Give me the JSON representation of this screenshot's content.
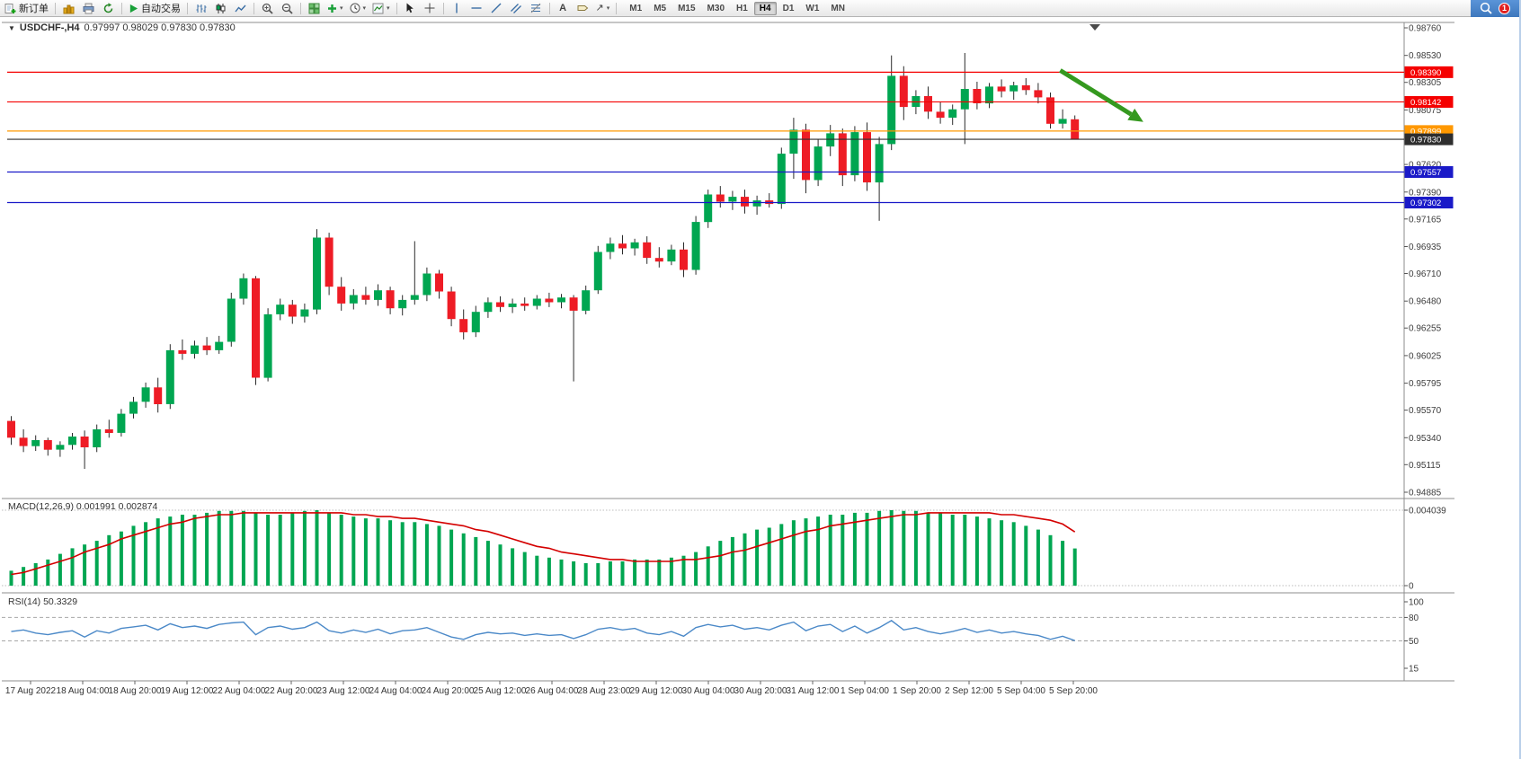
{
  "colors": {
    "up": "#00A651",
    "down": "#EE1C25",
    "wick": "#2b2b2b",
    "macd_bar": "#00A651",
    "macd_signal": "#D40000",
    "rsi_line": "#4B89C8",
    "arrow": "#35991F",
    "badge": "#E02020"
  },
  "toolbar": {
    "new_order_label": "新订单",
    "auto_trading_label": "自动交易",
    "timeframes": [
      "M1",
      "M5",
      "M15",
      "M30",
      "H1",
      "H4",
      "D1",
      "W1",
      "MN"
    ],
    "active_timeframe": "H4",
    "notification_count": "1"
  },
  "chart_data": [
    {
      "type": "candlestick",
      "symbol_period": "USDCHF-,H4",
      "ohlc_text": "0.97997 0.98029 0.97830 0.97830",
      "ohlc": {
        "open": "0.97997",
        "high": "0.98029",
        "low": "0.97830",
        "close": "0.97830"
      },
      "y_axis": {
        "min": 0.94885,
        "max": 0.9876,
        "ticks": [
          "0.98760",
          "0.98530",
          "0.98305",
          "0.98075",
          "0.97620",
          "0.97390",
          "0.97165",
          "0.96935",
          "0.96710",
          "0.96480",
          "0.96255",
          "0.96025",
          "0.95795",
          "0.95570",
          "0.95340",
          "0.95115",
          "0.94885"
        ]
      },
      "x_labels": [
        "17 Aug 2022",
        "18 Aug 04:00",
        "18 Aug 20:00",
        "19 Aug 12:00",
        "22 Aug 04:00",
        "22 Aug 20:00",
        "23 Aug 12:00",
        "24 Aug 04:00",
        "24 Aug 20:00",
        "25 Aug 12:00",
        "26 Aug 04:00",
        "28 Aug 23:00",
        "29 Aug 12:00",
        "30 Aug 04:00",
        "30 Aug 20:00",
        "31 Aug 12:00",
        "1 Sep 04:00",
        "1 Sep 20:00",
        "2 Sep 12:00",
        "5 Sep 04:00",
        "5 Sep 20:00"
      ],
      "hlines": [
        {
          "price": 0.9839,
          "label": "0.98390",
          "color": "#F50000",
          "role": "resistance"
        },
        {
          "price": 0.98142,
          "label": "0.98142",
          "color": "#F50000",
          "role": "resistance"
        },
        {
          "price": 0.97899,
          "label": "0.97899",
          "color": "#FF9800",
          "role": "level"
        },
        {
          "price": 0.9783,
          "label": "0.97830",
          "color": "#2E2E2E",
          "role": "current-price"
        },
        {
          "price": 0.97557,
          "label": "0.97557",
          "color": "#1A1AC8",
          "role": "support"
        },
        {
          "price": 0.97302,
          "label": "0.97302",
          "color": "#1A1AC8",
          "role": "support"
        }
      ],
      "arrow": {
        "from": {
          "index": 85.8,
          "price": 0.98405
        },
        "to": {
          "index": 92.6,
          "price": 0.97975
        }
      },
      "candles": [
        [
          0.9548,
          0.9552,
          0.9528,
          0.9534
        ],
        [
          0.9534,
          0.9541,
          0.9522,
          0.9527
        ],
        [
          0.9527,
          0.9536,
          0.9523,
          0.9532
        ],
        [
          0.9532,
          0.9534,
          0.9519,
          0.9524
        ],
        [
          0.9524,
          0.9531,
          0.9518,
          0.9528
        ],
        [
          0.9528,
          0.9538,
          0.9524,
          0.9535
        ],
        [
          0.9535,
          0.954,
          0.9508,
          0.9526
        ],
        [
          0.9526,
          0.9545,
          0.9522,
          0.9541
        ],
        [
          0.9541,
          0.9549,
          0.9534,
          0.9538
        ],
        [
          0.9538,
          0.9558,
          0.9535,
          0.9554
        ],
        [
          0.9554,
          0.9568,
          0.955,
          0.9564
        ],
        [
          0.9564,
          0.958,
          0.9559,
          0.9576
        ],
        [
          0.9576,
          0.9584,
          0.9555,
          0.9562
        ],
        [
          0.9562,
          0.9612,
          0.9558,
          0.9607
        ],
        [
          0.9607,
          0.9616,
          0.9599,
          0.9604
        ],
        [
          0.9604,
          0.9615,
          0.96,
          0.9611
        ],
        [
          0.9611,
          0.9618,
          0.9603,
          0.9607
        ],
        [
          0.9607,
          0.9619,
          0.9604,
          0.9614
        ],
        [
          0.9614,
          0.9655,
          0.961,
          0.965
        ],
        [
          0.965,
          0.9671,
          0.9645,
          0.9667
        ],
        [
          0.9667,
          0.9669,
          0.9578,
          0.9584
        ],
        [
          0.9584,
          0.9642,
          0.9581,
          0.9637
        ],
        [
          0.9637,
          0.965,
          0.9632,
          0.9645
        ],
        [
          0.9645,
          0.9649,
          0.9629,
          0.9635
        ],
        [
          0.9635,
          0.9646,
          0.963,
          0.9641
        ],
        [
          0.9641,
          0.9708,
          0.9637,
          0.9701
        ],
        [
          0.9701,
          0.9705,
          0.9653,
          0.966
        ],
        [
          0.966,
          0.9668,
          0.964,
          0.9646
        ],
        [
          0.9646,
          0.9658,
          0.9641,
          0.9653
        ],
        [
          0.9653,
          0.966,
          0.9645,
          0.9649
        ],
        [
          0.9649,
          0.9662,
          0.9644,
          0.9657
        ],
        [
          0.9657,
          0.966,
          0.9637,
          0.9642
        ],
        [
          0.9642,
          0.9653,
          0.9636,
          0.9649
        ],
        [
          0.9649,
          0.9698,
          0.9645,
          0.9653
        ],
        [
          0.9653,
          0.9676,
          0.9648,
          0.9671
        ],
        [
          0.9671,
          0.9674,
          0.965,
          0.9656
        ],
        [
          0.9656,
          0.966,
          0.9627,
          0.9633
        ],
        [
          0.9633,
          0.9641,
          0.9616,
          0.9622
        ],
        [
          0.9622,
          0.9644,
          0.9618,
          0.9639
        ],
        [
          0.9639,
          0.9651,
          0.9634,
          0.9647
        ],
        [
          0.9647,
          0.9652,
          0.9639,
          0.9643
        ],
        [
          0.9643,
          0.965,
          0.9638,
          0.9646
        ],
        [
          0.9646,
          0.9651,
          0.964,
          0.9644
        ],
        [
          0.9644,
          0.9653,
          0.9641,
          0.965
        ],
        [
          0.965,
          0.9655,
          0.9643,
          0.9647
        ],
        [
          0.9647,
          0.9654,
          0.9642,
          0.9651
        ],
        [
          0.9651,
          0.9653,
          0.9581,
          0.964
        ],
        [
          0.964,
          0.9661,
          0.9637,
          0.9657
        ],
        [
          0.9657,
          0.9694,
          0.9654,
          0.9689
        ],
        [
          0.9689,
          0.9701,
          0.9683,
          0.9696
        ],
        [
          0.9696,
          0.9703,
          0.9687,
          0.9692
        ],
        [
          0.9692,
          0.97,
          0.9686,
          0.9697
        ],
        [
          0.9697,
          0.9702,
          0.9679,
          0.9684
        ],
        [
          0.9684,
          0.9693,
          0.9676,
          0.9681
        ],
        [
          0.9681,
          0.9695,
          0.9678,
          0.9691
        ],
        [
          0.9691,
          0.9697,
          0.9668,
          0.9674
        ],
        [
          0.9674,
          0.9719,
          0.967,
          0.9714
        ],
        [
          0.9714,
          0.9741,
          0.9709,
          0.9737
        ],
        [
          0.9737,
          0.9744,
          0.9726,
          0.9731
        ],
        [
          0.9731,
          0.974,
          0.9724,
          0.9735
        ],
        [
          0.9735,
          0.9741,
          0.9721,
          0.9727
        ],
        [
          0.9727,
          0.9736,
          0.972,
          0.9732
        ],
        [
          0.9732,
          0.9738,
          0.9726,
          0.9729
        ],
        [
          0.9729,
          0.9776,
          0.9725,
          0.9771
        ],
        [
          0.9771,
          0.9801,
          0.975,
          0.9791
        ],
        [
          0.9791,
          0.9796,
          0.9738,
          0.9749
        ],
        [
          0.9749,
          0.9783,
          0.9744,
          0.9777
        ],
        [
          0.9777,
          0.9795,
          0.9769,
          0.9788
        ],
        [
          0.9788,
          0.9792,
          0.9744,
          0.9753
        ],
        [
          0.9753,
          0.9794,
          0.9748,
          0.9789
        ],
        [
          0.9789,
          0.9797,
          0.974,
          0.9747
        ],
        [
          0.9747,
          0.9785,
          0.9715,
          0.9779
        ],
        [
          0.9779,
          0.9853,
          0.9774,
          0.9836
        ],
        [
          0.9836,
          0.9844,
          0.9799,
          0.981
        ],
        [
          0.981,
          0.9824,
          0.9804,
          0.9819
        ],
        [
          0.9819,
          0.9827,
          0.98,
          0.9806
        ],
        [
          0.9806,
          0.9814,
          0.9796,
          0.9801
        ],
        [
          0.9801,
          0.9812,
          0.9795,
          0.9808
        ],
        [
          0.9808,
          0.9855,
          0.9779,
          0.9825
        ],
        [
          0.9825,
          0.9831,
          0.9808,
          0.9813
        ],
        [
          0.9813,
          0.983,
          0.9809,
          0.9827
        ],
        [
          0.9827,
          0.9833,
          0.9818,
          0.9823
        ],
        [
          0.9823,
          0.9831,
          0.9816,
          0.9828
        ],
        [
          0.9828,
          0.9834,
          0.982,
          0.9824
        ],
        [
          0.9824,
          0.983,
          0.9813,
          0.9818
        ],
        [
          0.9818,
          0.9822,
          0.9792,
          0.9796
        ],
        [
          0.9796,
          0.9808,
          0.9792,
          0.98
        ],
        [
          0.97997,
          0.98029,
          0.9783,
          0.9783
        ]
      ]
    },
    {
      "type": "bar",
      "name": "MACD(12,26,9)",
      "label": "MACD(12,26,9) 0.001991 0.002874",
      "macd_value": 0.001991,
      "signal_value": 0.002874,
      "ylim": [
        0,
        0.004039
      ],
      "yticks": [
        "0.004039",
        "0"
      ],
      "values": [
        0.0008,
        0.001,
        0.0012,
        0.0014,
        0.0017,
        0.002,
        0.0022,
        0.0024,
        0.0027,
        0.0029,
        0.0032,
        0.0034,
        0.0036,
        0.0037,
        0.0038,
        0.0038,
        0.0039,
        0.004,
        0.004,
        0.004,
        0.0039,
        0.0038,
        0.0038,
        0.0039,
        0.004,
        0.004039,
        0.0039,
        0.0038,
        0.0037,
        0.0036,
        0.0036,
        0.0035,
        0.0034,
        0.0034,
        0.0033,
        0.0032,
        0.003,
        0.0028,
        0.0026,
        0.0024,
        0.0022,
        0.002,
        0.0018,
        0.0016,
        0.0015,
        0.0014,
        0.0013,
        0.0012,
        0.0012,
        0.0013,
        0.0013,
        0.0014,
        0.0014,
        0.0014,
        0.0015,
        0.0016,
        0.0018,
        0.0021,
        0.0024,
        0.0026,
        0.0028,
        0.003,
        0.0031,
        0.0033,
        0.0035,
        0.0036,
        0.0037,
        0.0038,
        0.0038,
        0.0039,
        0.0039,
        0.004,
        0.004039,
        0.004,
        0.004,
        0.0039,
        0.0039,
        0.0038,
        0.0038,
        0.0037,
        0.0036,
        0.0035,
        0.0034,
        0.0032,
        0.003,
        0.0027,
        0.0024,
        0.001991
      ],
      "signal": [
        0.0006,
        0.0007,
        0.0009,
        0.0011,
        0.0013,
        0.0015,
        0.0018,
        0.002,
        0.0022,
        0.0025,
        0.0027,
        0.0029,
        0.0031,
        0.0033,
        0.0034,
        0.0036,
        0.0037,
        0.0038,
        0.0038,
        0.0039,
        0.0039,
        0.0039,
        0.0039,
        0.0039,
        0.0039,
        0.0039,
        0.0039,
        0.0039,
        0.0038,
        0.0038,
        0.0037,
        0.0037,
        0.0036,
        0.0036,
        0.0035,
        0.0034,
        0.0033,
        0.0032,
        0.003,
        0.0029,
        0.0027,
        0.0025,
        0.0023,
        0.0021,
        0.002,
        0.0018,
        0.0017,
        0.0016,
        0.0015,
        0.0014,
        0.0014,
        0.0013,
        0.0013,
        0.0013,
        0.0013,
        0.0014,
        0.0014,
        0.0015,
        0.0016,
        0.0018,
        0.0019,
        0.0021,
        0.0023,
        0.0025,
        0.0027,
        0.0029,
        0.003,
        0.0032,
        0.0033,
        0.0034,
        0.0035,
        0.0036,
        0.0037,
        0.0038,
        0.0038,
        0.0039,
        0.0039,
        0.0039,
        0.0039,
        0.0039,
        0.0039,
        0.0038,
        0.0038,
        0.0037,
        0.0036,
        0.0035,
        0.0033,
        0.002874
      ]
    },
    {
      "type": "line",
      "name": "RSI(14)",
      "label": "RSI(14) 50.3329",
      "value": 50.3329,
      "ylim": [
        15,
        100
      ],
      "yticks": [
        "100",
        "80",
        "50",
        "15"
      ],
      "levels": [
        80,
        50
      ],
      "values": [
        62,
        64,
        60,
        58,
        61,
        63,
        55,
        63,
        60,
        66,
        68,
        70,
        64,
        72,
        67,
        69,
        66,
        71,
        73,
        74,
        58,
        67,
        69,
        65,
        67,
        74,
        63,
        60,
        64,
        61,
        65,
        59,
        63,
        64,
        67,
        61,
        55,
        52,
        58,
        61,
        59,
        60,
        57,
        59,
        57,
        58,
        53,
        58,
        65,
        67,
        64,
        66,
        60,
        58,
        62,
        56,
        67,
        71,
        68,
        70,
        65,
        67,
        64,
        70,
        74,
        63,
        69,
        71,
        62,
        69,
        60,
        67,
        76,
        64,
        67,
        62,
        59,
        62,
        66,
        61,
        64,
        60,
        62,
        59,
        57,
        52,
        56,
        50.3329
      ]
    }
  ]
}
